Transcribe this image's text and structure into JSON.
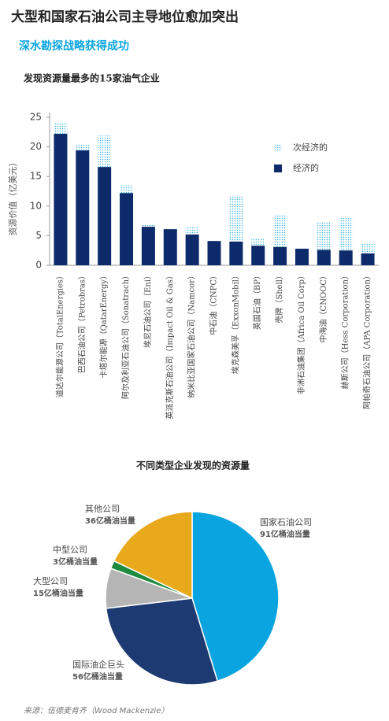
{
  "title": "大型和国家石油公司主导地位愈加突出",
  "subtitle": "深水勘探战略获得成功",
  "source": "来源：伍德麦肯齐（Wood Mackenzie）",
  "chart_data": [
    {
      "type": "bar",
      "stacked": true,
      "title": "发现资源量最多的15家油气企业",
      "y_label": "资源价值（亿美元）",
      "categories": [
        "道达尔能源公司（TotalEnergies）",
        "巴西石油公司（Petrobras）",
        "卡塔尔能源（QatarEnergy）",
        "阿尔及利亚石油公司（Sonatrach）",
        "埃尼石油公司（Eni）",
        "英派克斯石油公司（Impact Oil & Gas）",
        "纳米比亚国家石油公司（Namcor）",
        "中石油（CNPC）",
        "埃克森美孚（ExxonMobil）",
        "英国石油（BP）",
        "壳牌（Shell）",
        "非洲石油集团（Africa Oil Corp）",
        "中海油（CNOOC）",
        "赫斯公司（Hess Corporation）",
        "阿帕奇石油公司（APA Corporation）"
      ],
      "series": [
        {
          "name": "经济的",
          "color": "#0d2a6b",
          "values": [
            22.2,
            19.4,
            16.6,
            12.2,
            6.5,
            6.1,
            5.2,
            4.1,
            4.0,
            3.3,
            3.1,
            2.8,
            2.6,
            2.5,
            2.0
          ]
        },
        {
          "name": "次经济的",
          "color": "#3fb6e0",
          "pattern": "dotted",
          "values": [
            1.8,
            1.0,
            5.3,
            1.3,
            0.3,
            0,
            1.2,
            0,
            7.8,
            1.3,
            5.5,
            0,
            4.8,
            5.5,
            1.8
          ]
        }
      ],
      "ylim": [
        0,
        25
      ],
      "yticks": [
        0,
        5,
        10,
        15,
        20,
        25
      ],
      "grid": false
    },
    {
      "type": "pie",
      "title": "不同类型企业发现的资源量",
      "categories": [
        "国家石油公司",
        "国际油企巨头",
        "大型公司",
        "中型公司",
        "其他公司"
      ],
      "values": [
        91,
        56,
        15,
        3,
        36
      ],
      "value_labels": [
        "91亿桶油当量",
        "56亿桶油当量",
        "15亿桶油当量",
        "3亿桶油当量",
        "36亿桶油当量"
      ],
      "colors": [
        "#0aa5e0",
        "#1d3b72",
        "#b5b5b5",
        "#1e8a3e",
        "#e8a91c"
      ]
    }
  ]
}
